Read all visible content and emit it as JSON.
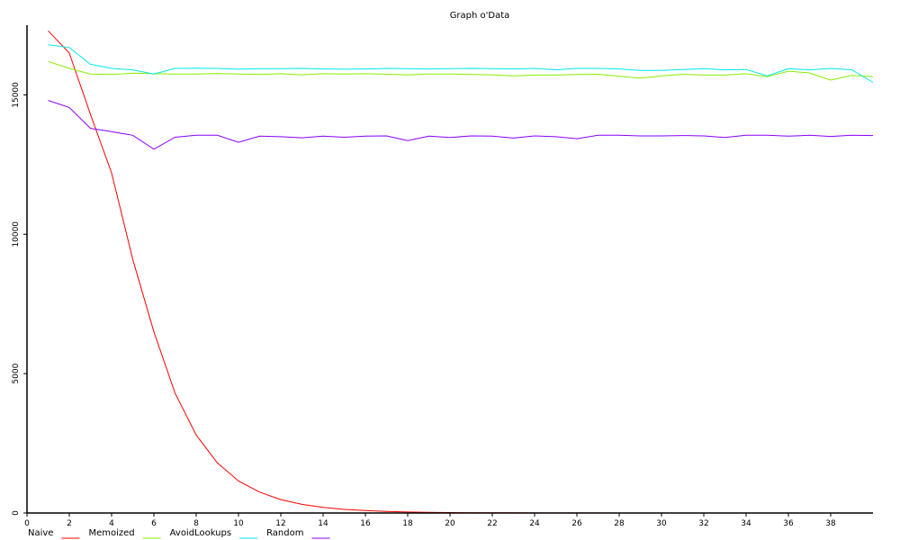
{
  "chart_data": {
    "type": "line",
    "title": "Graph o'Data",
    "xlabel": "",
    "ylabel": "",
    "xlim": [
      0,
      40
    ],
    "ylim": [
      0,
      17500
    ],
    "x_ticks": [
      0,
      2,
      4,
      6,
      8,
      10,
      12,
      14,
      16,
      18,
      20,
      22,
      24,
      26,
      28,
      30,
      32,
      34,
      36,
      38
    ],
    "y_ticks": [
      0,
      5000,
      10000,
      15000
    ],
    "grid": false,
    "legend_position": "bottom-left",
    "x": [
      1,
      2,
      3,
      4,
      5,
      6,
      7,
      8,
      9,
      10,
      11,
      12,
      13,
      14,
      15,
      16,
      17,
      18,
      19,
      20,
      21,
      22,
      23,
      24,
      25,
      26,
      27,
      28,
      29,
      30,
      31,
      32,
      33,
      34,
      35,
      36,
      37,
      38,
      39,
      40
    ],
    "series": [
      {
        "name": "Naive",
        "color": "#ff0000",
        "values": [
          17300,
          16500,
          14300,
          12200,
          9100,
          6500,
          4300,
          2800,
          1800,
          1150,
          750,
          480,
          310,
          200,
          130,
          90,
          55,
          35,
          22,
          15,
          10,
          7,
          5,
          4,
          3,
          2,
          2,
          1,
          1,
          1,
          1,
          1,
          0,
          0,
          0,
          0,
          0,
          0,
          0,
          0
        ]
      },
      {
        "name": "Memoized",
        "color": "#88ee00",
        "values": [
          16200,
          15950,
          15750,
          15730,
          15780,
          15760,
          15750,
          15750,
          15770,
          15750,
          15730,
          15760,
          15720,
          15760,
          15750,
          15760,
          15740,
          15720,
          15750,
          15750,
          15730,
          15720,
          15680,
          15710,
          15710,
          15730,
          15740,
          15670,
          15600,
          15680,
          15740,
          15710,
          15710,
          15760,
          15650,
          15850,
          15790,
          15530,
          15700,
          15650
        ]
      },
      {
        "name": "AvoidLookups",
        "color": "#00e8e8",
        "values": [
          16800,
          16700,
          16100,
          15950,
          15900,
          15750,
          15950,
          15960,
          15950,
          15920,
          15940,
          15940,
          15950,
          15930,
          15920,
          15930,
          15950,
          15940,
          15930,
          15940,
          15950,
          15940,
          15930,
          15950,
          15900,
          15950,
          15950,
          15930,
          15880,
          15880,
          15910,
          15940,
          15900,
          15910,
          15680,
          15940,
          15900,
          15950,
          15900,
          15450
        ]
      },
      {
        "name": "Random",
        "color": "#8800ff",
        "values": [
          14800,
          14550,
          13800,
          13680,
          13550,
          13050,
          13480,
          13550,
          13550,
          13300,
          13520,
          13500,
          13460,
          13520,
          13480,
          13520,
          13530,
          13360,
          13520,
          13470,
          13530,
          13520,
          13450,
          13530,
          13500,
          13430,
          13550,
          13550,
          13530,
          13530,
          13540,
          13530,
          13470,
          13550,
          13550,
          13520,
          13550,
          13510,
          13550,
          13540
        ]
      }
    ]
  }
}
